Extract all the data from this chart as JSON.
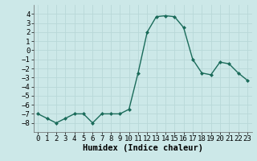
{
  "x": [
    0,
    1,
    2,
    3,
    4,
    5,
    6,
    7,
    8,
    9,
    10,
    11,
    12,
    13,
    14,
    15,
    16,
    17,
    18,
    19,
    20,
    21,
    22,
    23
  ],
  "y": [
    -7.0,
    -7.5,
    -8.0,
    -7.5,
    -7.0,
    -7.0,
    -8.0,
    -7.0,
    -7.0,
    -7.0,
    -6.5,
    -2.5,
    2.0,
    3.7,
    3.8,
    3.7,
    2.5,
    -1.0,
    -2.5,
    -2.7,
    -1.3,
    -1.5,
    -2.5,
    -3.3
  ],
  "line_color": "#1a6b5a",
  "marker": "D",
  "marker_size": 2.0,
  "bg_color": "#cce8e8",
  "grid_color": "#b8d8d8",
  "xlabel": "Humidex (Indice chaleur)",
  "ylim": [
    -9,
    5
  ],
  "xlim": [
    -0.5,
    23.5
  ],
  "yticks": [
    -8,
    -7,
    -6,
    -5,
    -4,
    -3,
    -2,
    -1,
    0,
    1,
    2,
    3,
    4
  ],
  "xticks": [
    0,
    1,
    2,
    3,
    4,
    5,
    6,
    7,
    8,
    9,
    10,
    11,
    12,
    13,
    14,
    15,
    16,
    17,
    18,
    19,
    20,
    21,
    22,
    23
  ],
  "xlabel_fontsize": 7.5,
  "tick_fontsize": 6.5,
  "linewidth": 1.0
}
